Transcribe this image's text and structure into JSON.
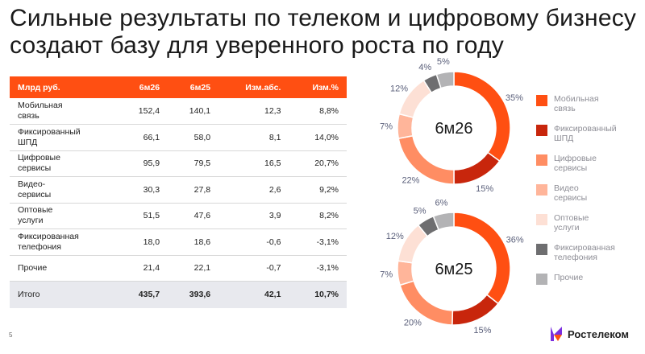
{
  "title": "Сильные результаты по телеком и цифровому бизнесу создают базу для уверенного роста по году",
  "table": {
    "headers": [
      "Млрд руб.",
      "6м26",
      "6м25",
      "Изм.абс.",
      "Изм.%"
    ],
    "rows": [
      {
        "label": "Мобильная\nсвязь",
        "v1": "152,4",
        "v2": "140,1",
        "abs": "12,3",
        "pct": "8,8%"
      },
      {
        "label": "Фиксированный\nШПД",
        "v1": "66,1",
        "v2": "58,0",
        "abs": "8,1",
        "pct": "14,0%"
      },
      {
        "label": "Цифровые\nсервисы",
        "v1": "95,9",
        "v2": "79,5",
        "abs": "16,5",
        "pct": "20,7%"
      },
      {
        "label": "Видео-\nсервисы",
        "v1": "30,3",
        "v2": "27,8",
        "abs": "2,6",
        "pct": "9,2%"
      },
      {
        "label": "Оптовые\nуслуги",
        "v1": "51,5",
        "v2": "47,6",
        "abs": "3,9",
        "pct": "8,2%"
      },
      {
        "label": "Фиксированная\nтелефония",
        "v1": "18,0",
        "v2": "18,6",
        "abs": "-0,6",
        "pct": "-3,1%"
      },
      {
        "label": "Прочие",
        "v1": "21,4",
        "v2": "22,1",
        "abs": "-0,7",
        "pct": "-3,1%"
      }
    ],
    "total": {
      "label": "Итого",
      "v1": "435,7",
      "v2": "393,6",
      "abs": "42,1",
      "pct": "10,7%"
    }
  },
  "chart_data": [
    {
      "type": "pie",
      "title": "6м26",
      "categories": [
        "Мобильная связь",
        "Фиксированный ШПД",
        "Цифровые сервисы",
        "Видео сервисы",
        "Оптовые услуги",
        "Фиксированная телефония",
        "Прочие"
      ],
      "values": [
        35,
        15,
        22,
        7,
        12,
        4,
        5
      ],
      "labels": [
        "35%",
        "15%",
        "22%",
        "7%",
        "12%",
        "4%",
        "5%"
      ]
    },
    {
      "type": "pie",
      "title": "6м25",
      "categories": [
        "Мобильная связь",
        "Фиксированный ШПД",
        "Цифровые сервисы",
        "Видео сервисы",
        "Оптовые услуги",
        "Фиксированная телефония",
        "Прочие"
      ],
      "values": [
        36,
        15,
        20,
        7,
        12,
        5,
        6
      ],
      "labels": [
        "36%",
        "15%",
        "20%",
        "7%",
        "12%",
        "5%",
        "6%"
      ]
    }
  ],
  "legend": [
    {
      "label": "Мобильная\nсвязь",
      "color": "#ff4f12"
    },
    {
      "label": "Фиксированный\nШПД",
      "color": "#c8260c"
    },
    {
      "label": "Цифровые\nсервисы",
      "color": "#ff8d63"
    },
    {
      "label": "Видео\nсервисы",
      "color": "#ffb59a"
    },
    {
      "label": "Оптовые\nуслуги",
      "color": "#fde0d5"
    },
    {
      "label": "Фиксированная\nтелефония",
      "color": "#6e6e70"
    },
    {
      "label": "Прочие",
      "color": "#b3b3b5"
    }
  ],
  "page_number": "5",
  "logo_text": "Ростелеком"
}
